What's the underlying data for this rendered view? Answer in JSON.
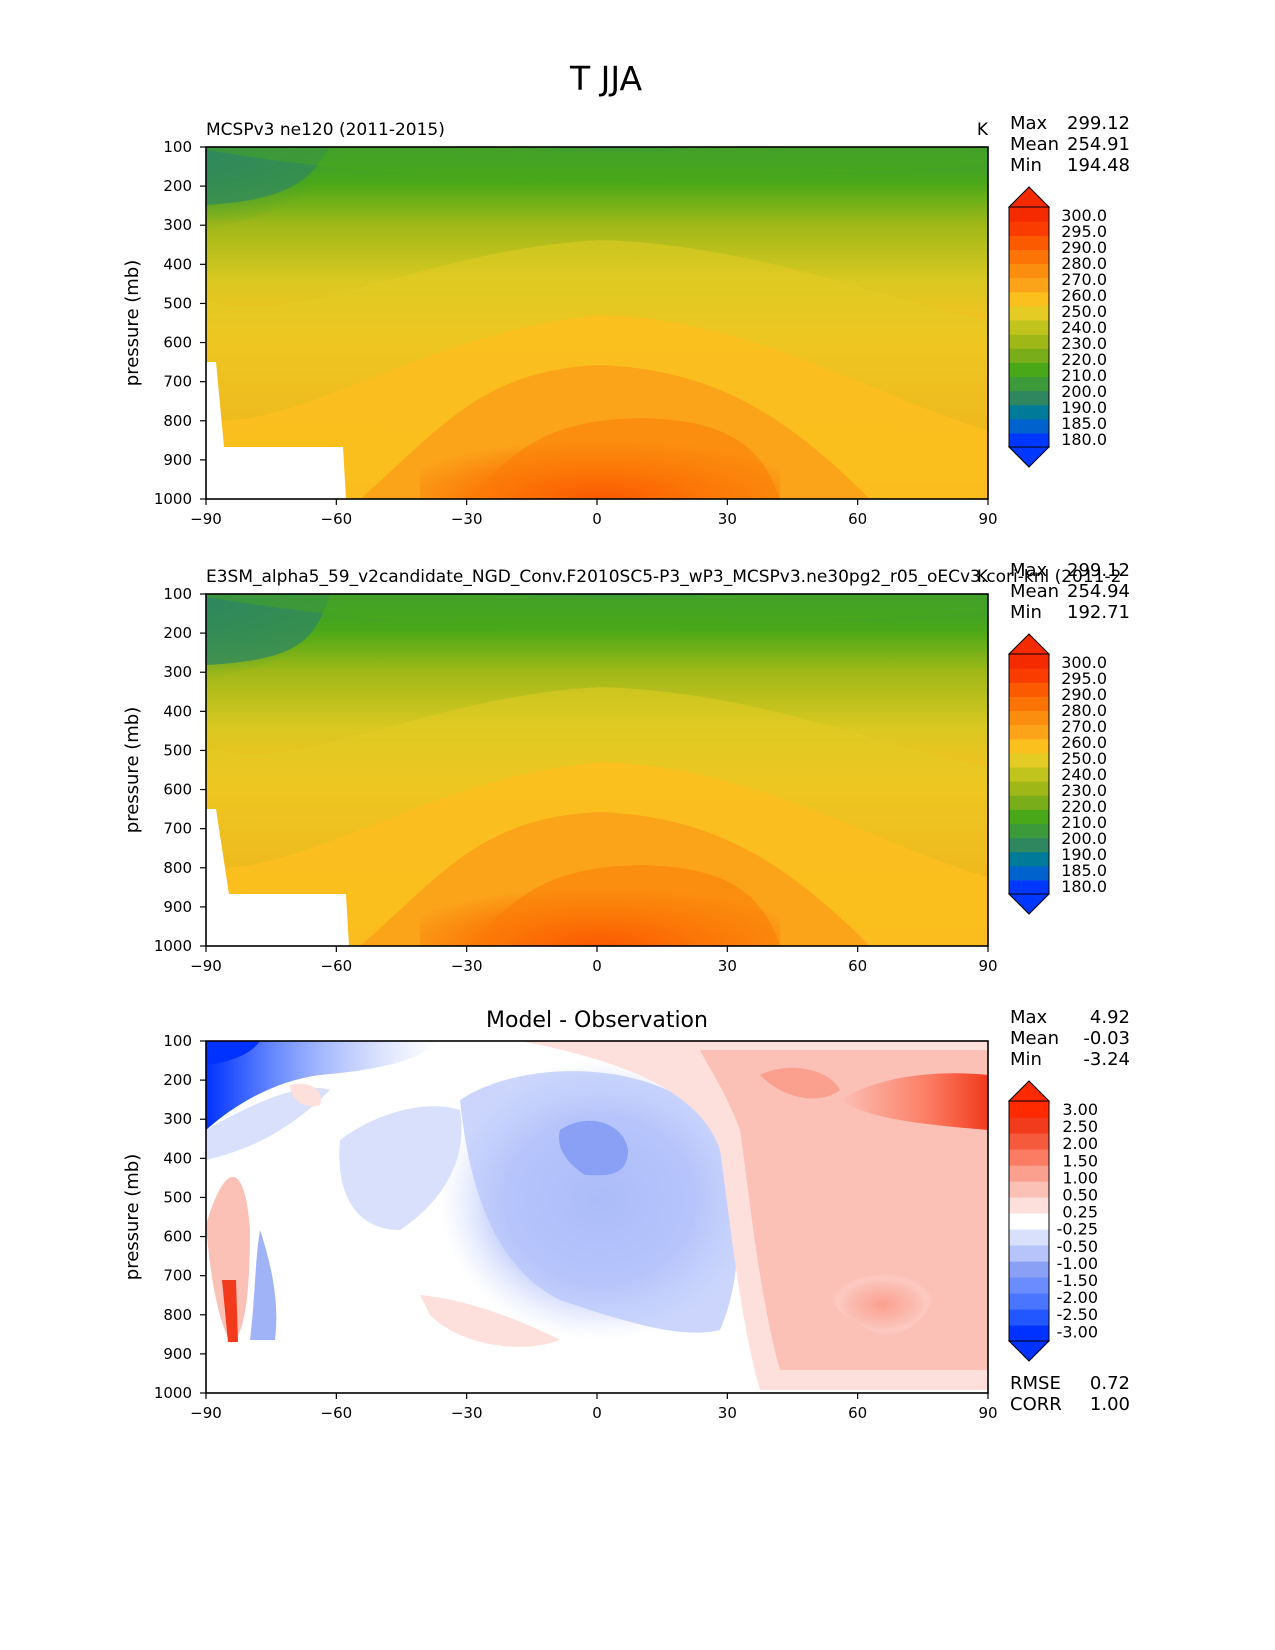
{
  "title": "T JJA",
  "chart_data": [
    {
      "type": "contour",
      "title": "MCSPv3 ne120 (2011-2015)",
      "units": "K",
      "xlabel": "",
      "ylabel": "pressure (mb)",
      "xticks": [
        -90,
        -60,
        -30,
        0,
        30,
        60,
        90
      ],
      "xtick_labels": [
        "−90",
        "−60",
        "−30",
        "0",
        "30",
        "60",
        "90"
      ],
      "yticks": [
        100,
        200,
        300,
        400,
        500,
        600,
        700,
        800,
        900,
        1000
      ],
      "xlim": [
        -90,
        90
      ],
      "ylim": [
        1000,
        100
      ],
      "stats": [
        {
          "label": "Max",
          "value": "299.12"
        },
        {
          "label": "Mean",
          "value": "254.91"
        },
        {
          "label": "Min",
          "value": "194.48"
        }
      ],
      "colorbar_labels": [
        "300.0",
        "295.0",
        "290.0",
        "280.0",
        "270.0",
        "260.0",
        "250.0",
        "240.0",
        "230.0",
        "220.0",
        "210.0",
        "200.0",
        "190.0",
        "185.0",
        "180.0"
      ]
    },
    {
      "type": "contour",
      "title": "E3SM_alpha5_59_v2candidate_NGD_Conv.F2010SC5-P3_wP3_MCSPv3.ne30pg2_r05_oECv3.cori-knl (2011-2",
      "units": "K",
      "xlabel": "",
      "ylabel": "pressure (mb)",
      "xticks": [
        -90,
        -60,
        -30,
        0,
        30,
        60,
        90
      ],
      "xtick_labels": [
        "−90",
        "−60",
        "−30",
        "0",
        "30",
        "60",
        "90"
      ],
      "yticks": [
        100,
        200,
        300,
        400,
        500,
        600,
        700,
        800,
        900,
        1000
      ],
      "xlim": [
        -90,
        90
      ],
      "ylim": [
        1000,
        100
      ],
      "stats": [
        {
          "label": "Max",
          "value": "299.12"
        },
        {
          "label": "Mean",
          "value": "254.94"
        },
        {
          "label": "Min",
          "value": "192.71"
        }
      ],
      "colorbar_labels": [
        "300.0",
        "295.0",
        "290.0",
        "280.0",
        "270.0",
        "260.0",
        "250.0",
        "240.0",
        "230.0",
        "220.0",
        "210.0",
        "200.0",
        "190.0",
        "185.0",
        "180.0"
      ]
    },
    {
      "type": "contour",
      "title": "Model - Observation",
      "units": "",
      "xlabel": "",
      "ylabel": "pressure (mb)",
      "xticks": [
        -90,
        -60,
        -30,
        0,
        30,
        60,
        90
      ],
      "xtick_labels": [
        "−90",
        "−60",
        "−30",
        "0",
        "30",
        "60",
        "90"
      ],
      "yticks": [
        100,
        200,
        300,
        400,
        500,
        600,
        700,
        800,
        900,
        1000
      ],
      "xlim": [
        -90,
        90
      ],
      "ylim": [
        1000,
        100
      ],
      "stats": [
        {
          "label": "Max",
          "value": "4.92"
        },
        {
          "label": "Mean",
          "value": "-0.03"
        },
        {
          "label": "Min",
          "value": "-3.24"
        }
      ],
      "bottom_stats": [
        {
          "label": "RMSE",
          "value": "0.72"
        },
        {
          "label": "CORR",
          "value": "1.00"
        }
      ],
      "colorbar_labels": [
        "3.00",
        "2.50",
        "2.00",
        "1.50",
        "1.00",
        "0.50",
        "0.25",
        "-0.25",
        "-0.50",
        "-1.00",
        "-1.50",
        "-2.00",
        "-2.50",
        "-3.00"
      ]
    }
  ],
  "colors": {
    "temp_ramp": [
      "#0037ff",
      "#0062cc",
      "#007a99",
      "#2f8760",
      "#3d9a3a",
      "#49a818",
      "#79ae1a",
      "#9fb818",
      "#c1c41c",
      "#e4cc24",
      "#fbbf1e",
      "#fba41a",
      "#fb8e0e",
      "#fb7405",
      "#fb5a00",
      "#fa3c00",
      "#f52a00"
    ],
    "diff_ramp": [
      "#0032ff",
      "#2257ff",
      "#4a75ff",
      "#6b8cff",
      "#8aa0f5",
      "#b6c4fb",
      "#d8e0fb",
      "#ffffff",
      "#fde0dc",
      "#fbc0b6",
      "#fba08f",
      "#fb7c63",
      "#f55a3c",
      "#f23a1c",
      "#ff2a00"
    ]
  }
}
